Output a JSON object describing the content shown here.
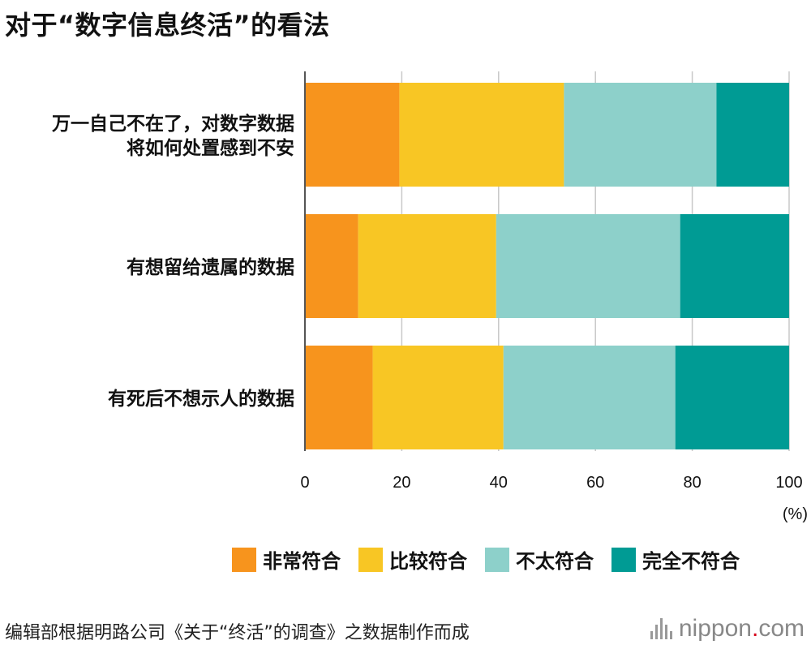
{
  "title": "对于“数字信息终活”的看法",
  "chart_data": {
    "type": "bar",
    "orientation": "horizontal",
    "stacked": true,
    "categories": [
      [
        "万一自己不在了，对数字数据",
        "将如何处置感到不安"
      ],
      [
        "有想留给遗属的数据"
      ],
      [
        "有死后不想示人的数据"
      ]
    ],
    "series": [
      {
        "name": "非常符合",
        "color": "#f7941d",
        "values": [
          19.5,
          11,
          14
        ]
      },
      {
        "name": "比较符合",
        "color": "#f8c624",
        "values": [
          34,
          28.5,
          27
        ]
      },
      {
        "name": "不太符合",
        "color": "#8dd0ca",
        "values": [
          31.5,
          38,
          35.5
        ]
      },
      {
        "name": "完全不符合",
        "color": "#009b94",
        "values": [
          15,
          22.5,
          23.5
        ]
      }
    ],
    "xlim": [
      0,
      100
    ],
    "xticks": [
      0,
      20,
      40,
      60,
      80,
      100
    ],
    "xunit": "(%)",
    "grid": true,
    "legend_position": "bottom-right"
  },
  "footer": {
    "source": "编辑部根据明路公司《关于“终活”的调查》之数据制作而成",
    "brand_main": "nippon",
    "brand_dot": ".",
    "brand_suffix": "com"
  }
}
